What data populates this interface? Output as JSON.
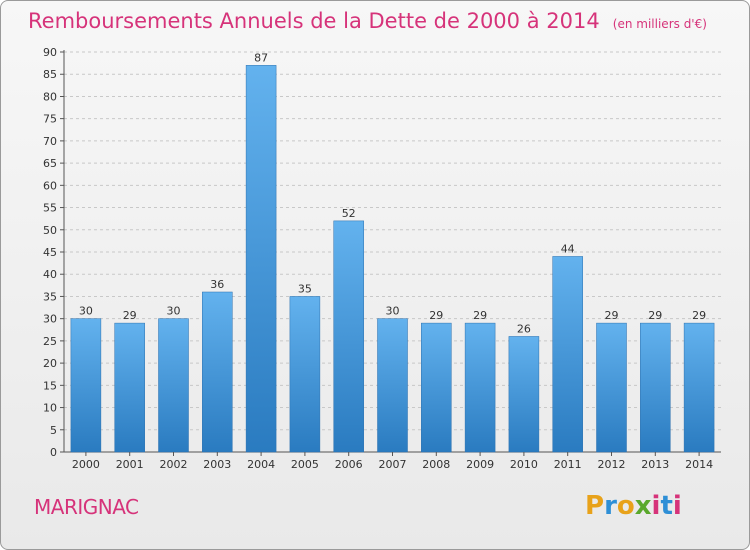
{
  "title": "Remboursements Annuels de la Dette de 2000 à 2014",
  "subtitle": "(en milliers d'€)",
  "commune": "MARIGNAC",
  "brand": {
    "letters": [
      "P",
      "r",
      "o",
      "x",
      "i",
      "t",
      "i"
    ],
    "colors": [
      "#e8a21a",
      "#2e8fd6",
      "#e8a21a",
      "#5aa82c",
      "#d6337a",
      "#2e8fd6",
      "#d6337a"
    ]
  },
  "colors": {
    "bar_light": "#63b2ee",
    "bar_dark": "#2a7bc0",
    "axis": "#555555",
    "grid": "#c8c8c8",
    "text": "#333333"
  },
  "chart_data": {
    "type": "bar",
    "categories": [
      "2000",
      "2001",
      "2002",
      "2003",
      "2004",
      "2005",
      "2006",
      "2007",
      "2008",
      "2009",
      "2010",
      "2011",
      "2012",
      "2013",
      "2014"
    ],
    "values": [
      30,
      29,
      30,
      36,
      87,
      35,
      52,
      30,
      29,
      29,
      26,
      44,
      29,
      29,
      29
    ],
    "ylim": [
      0,
      90
    ],
    "ytick_step": 5,
    "grid": "horizontal dashed at major ticks",
    "data_labels": true
  }
}
